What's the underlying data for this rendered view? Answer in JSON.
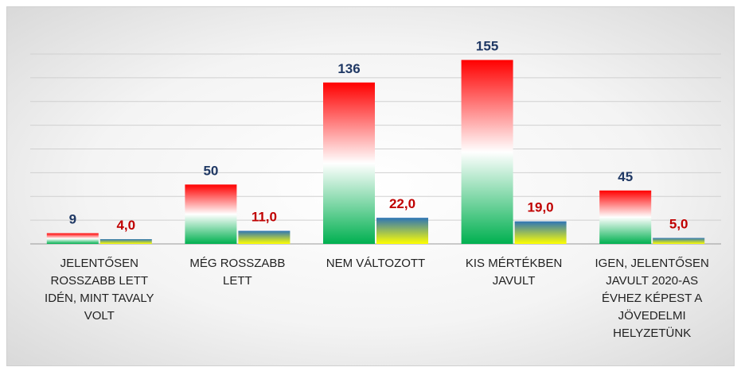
{
  "chart_data": {
    "type": "bar",
    "categories": [
      "JELENTŐSEN ROSSZABB LETT IDÉN, MINT TAVALY VOLT",
      "MÉG ROSSZABB LETT",
      "NEM VÁLTOZOTT",
      "KIS MÉRTÉKBEN JAVULT",
      "IGEN, JELENTŐSEN JAVULT 2020-AS ÉVHEZ KÉPEST A JÖVEDELMI HELYZETÜNK"
    ],
    "series": [
      {
        "colors": [
          "#ff0000",
          "#ffffff",
          "#00b050"
        ],
        "label_color": "#1f3864",
        "values": [
          9,
          50,
          136,
          155,
          45
        ]
      },
      {
        "colors": [
          "#2e75b6",
          "#ffff00"
        ],
        "label_color": "#c00000",
        "values": [
          4,
          11,
          22,
          19,
          5
        ],
        "value_labels": [
          "4,0",
          "11,0",
          "22,0",
          "19,0",
          "5,0"
        ]
      }
    ],
    "ylim": [
      0,
      160
    ],
    "yticks": [
      0,
      20,
      40,
      60,
      80,
      100,
      120,
      140,
      160
    ],
    "grid": true
  }
}
